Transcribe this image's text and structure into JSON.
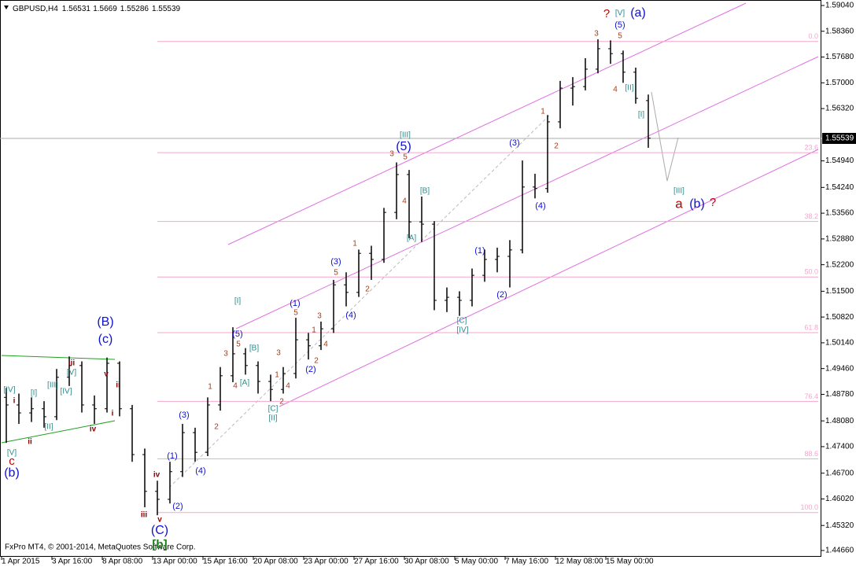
{
  "chart_data": {
    "type": "ohlc",
    "symbol": "GBPUSD,H4",
    "footer": "FxPro MT4, © 2001-2014, MetaQuotes Software Corp.",
    "categories": [
      "1 Apr 2015",
      null,
      null,
      null,
      "3 Apr 16:00",
      null,
      null,
      null,
      "8 Apr 08:00",
      null,
      null,
      null,
      "13 Apr 00:00",
      null,
      null,
      null,
      "15 Apr 16:00",
      null,
      null,
      null,
      "20 Apr 08:00",
      null,
      null,
      null,
      "23 Apr 00:00",
      null,
      null,
      null,
      "27 Apr 16:00",
      null,
      null,
      null,
      "30 Apr 08:00",
      null,
      null,
      null,
      "5 May 00:00",
      null,
      null,
      null,
      "7 May 16:00",
      null,
      null,
      null,
      "12 May 08:00",
      null,
      null,
      null,
      "15 May 00:00",
      null,
      null,
      null
    ],
    "open": [
      1.487,
      1.485,
      1.4829,
      1.484,
      1.4819,
      1.4923,
      1.4954,
      1.485,
      1.484,
      1.496,
      1.484,
      1.4719,
      1.4622,
      1.4601,
      1.4674,
      1.4777,
      1.4725,
      1.485,
      1.4927,
      1.4985,
      1.4954,
      1.4912,
      1.4891,
      1.4933,
      1.5022,
      1.5006,
      1.5051,
      1.5167,
      1.5147,
      1.525,
      1.5234,
      1.5358,
      1.5458,
      1.5333,
      1.5327,
      1.5126,
      1.5134,
      1.5126,
      1.5192,
      1.5234,
      1.5242,
      1.5259,
      1.5425,
      1.5421,
      1.5597,
      1.5686,
      1.569,
      1.5736,
      1.579,
      1.5777,
      1.5728,
      1.56531
    ],
    "high": [
      1.4895,
      1.488,
      1.487,
      1.486,
      1.4945,
      1.4978,
      1.4965,
      1.4875,
      1.4975,
      1.4965,
      1.485,
      1.4735,
      1.465,
      1.47,
      1.48,
      1.479,
      1.487,
      1.495,
      1.5055,
      1.5,
      1.4965,
      1.493,
      1.495,
      1.508,
      1.504,
      1.507,
      1.518,
      1.52,
      1.526,
      1.527,
      1.537,
      1.549,
      1.547,
      1.54,
      1.5335,
      1.516,
      1.515,
      1.521,
      1.526,
      1.5265,
      1.5285,
      1.5495,
      1.546,
      1.5615,
      1.5705,
      1.5715,
      1.5765,
      1.5815,
      1.5812,
      1.5785,
      1.574,
      1.5669
    ],
    "low": [
      1.475,
      1.48,
      1.4805,
      1.479,
      1.481,
      1.49,
      1.483,
      1.48,
      1.483,
      1.482,
      1.47,
      1.458,
      1.4559,
      1.459,
      1.466,
      1.47,
      1.4715,
      1.4835,
      1.491,
      1.493,
      1.488,
      1.486,
      1.488,
      1.492,
      1.497,
      1.4995,
      1.504,
      1.511,
      1.5135,
      1.518,
      1.5225,
      1.534,
      1.529,
      1.528,
      1.51,
      1.5095,
      1.5085,
      1.511,
      1.5175,
      1.52,
      1.516,
      1.525,
      1.5395,
      1.541,
      1.558,
      1.564,
      1.568,
      1.5725,
      1.575,
      1.57,
      1.5645,
      1.55286
    ],
    "close": [
      1.485,
      1.4829,
      1.484,
      1.4819,
      1.4923,
      1.4954,
      1.485,
      1.484,
      1.496,
      1.484,
      1.4719,
      1.4622,
      1.4601,
      1.4674,
      1.4777,
      1.4725,
      1.485,
      1.4927,
      1.4985,
      1.4954,
      1.4912,
      1.4891,
      1.4933,
      1.5022,
      1.5006,
      1.5051,
      1.5167,
      1.5147,
      1.525,
      1.5234,
      1.5358,
      1.5458,
      1.5333,
      1.5327,
      1.5126,
      1.5134,
      1.5126,
      1.5192,
      1.5234,
      1.5242,
      1.5259,
      1.5425,
      1.5421,
      1.5597,
      1.5686,
      1.569,
      1.5736,
      1.579,
      1.5777,
      1.5728,
      1.5659,
      1.55539
    ],
    "color": "#000000",
    "ylim": [
      1.44494,
      1.59185
    ],
    "yticks": [
      {
        "value": 1.5904,
        "label": "1.59040"
      },
      {
        "value": 1.5836,
        "label": "1.58360"
      },
      {
        "value": 1.5768,
        "label": "1.57680"
      },
      {
        "value": 1.57,
        "label": "1.57000"
      },
      {
        "value": 1.5632,
        "label": "1.56320"
      },
      {
        "value": 1.5494,
        "label": "1.54940"
      },
      {
        "value": 1.5424,
        "label": "1.54240"
      },
      {
        "value": 1.5356,
        "label": "1.53560"
      },
      {
        "value": 1.5288,
        "label": "1.52880"
      },
      {
        "value": 1.522,
        "label": "1.52200"
      },
      {
        "value": 1.515,
        "label": "1.51500"
      },
      {
        "value": 1.5082,
        "label": "1.50820"
      },
      {
        "value": 1.5014,
        "label": "1.50140"
      },
      {
        "value": 1.4946,
        "label": "1.49460"
      },
      {
        "value": 1.4878,
        "label": "1.48780"
      },
      {
        "value": 1.4808,
        "label": "1.48080"
      },
      {
        "value": 1.474,
        "label": "1.47400"
      },
      {
        "value": 1.467,
        "label": "1.46700"
      },
      {
        "value": 1.4602,
        "label": "1.46020"
      },
      {
        "value": 1.4532,
        "label": "1.45320"
      },
      {
        "value": 1.4466,
        "label": "1.44660"
      }
    ],
    "grid": false,
    "fibo": {
      "high": 1.5809,
      "low": 1.4566,
      "color": "#f4a6cc",
      "levels": [
        {
          "value": 0,
          "label": "0.0"
        },
        23.6,
        38.2,
        {
          "value": 50,
          "label": "50.0"
        },
        61.8,
        76.4,
        88.6,
        {
          "value": 100,
          "label": "100.0"
        }
      ]
    },
    "wave_labels": [
      "[IV]",
      "i",
      "[I]",
      "[III]",
      "iii",
      "[V]",
      "[IV]",
      "[II]",
      "ii",
      "[V]",
      "c",
      "(b)",
      "(B)",
      "(c)",
      "v",
      "ii",
      "i",
      "iv",
      "iv",
      "iii",
      "v",
      "(C)",
      "[b]",
      "(1)",
      "(2)",
      "(3)",
      "(4)",
      "1",
      "2",
      "3",
      "4",
      "5",
      "(5)",
      "[I]",
      "[A]",
      "[B]",
      "3",
      "1",
      "4",
      "2",
      "[C]",
      "[II]",
      "(1)",
      "5",
      "3",
      "1",
      "2",
      "4",
      "(2)",
      "(3)",
      "5",
      "(4)",
      "1",
      "2",
      "3",
      "5",
      "[III]",
      "(5)",
      "4",
      "[B]",
      "[A]",
      "(1)",
      "(2)",
      "[C]",
      "[IV]",
      "(3)",
      "(4)",
      "1",
      "2",
      "3",
      "5",
      "(5)",
      "[V]",
      "?",
      "(a)",
      "4",
      "[II]",
      "[I]",
      "[III]",
      "a",
      "(b)",
      "?"
    ]
  }
}
